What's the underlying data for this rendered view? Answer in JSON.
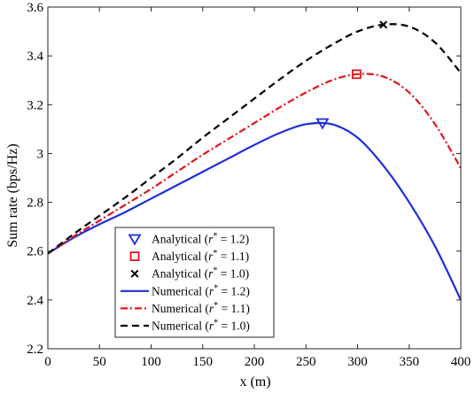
{
  "chart_data": {
    "type": "line",
    "title": "",
    "xlabel": "x (m)",
    "ylabel": "Sum rate (bps/Hz)",
    "xlim": [
      0,
      400
    ],
    "ylim": [
      2.2,
      3.6
    ],
    "xticks": [
      "0",
      "50",
      "100",
      "150",
      "200",
      "250",
      "300",
      "350",
      "400"
    ],
    "yticks": [
      "2.2",
      "2.4",
      "2.6",
      "2.8",
      "3",
      "3.2",
      "3.4",
      "3.6"
    ],
    "grid": false,
    "legend_position": "bottom-center",
    "x": [
      0,
      25,
      50,
      75,
      100,
      125,
      150,
      175,
      200,
      225,
      250,
      275,
      300,
      325,
      350,
      375,
      400
    ],
    "series": [
      {
        "name": "Numerical (r* = 1.2)",
        "r": "1.2",
        "color": "#1f2fd8",
        "style": "solid",
        "values": [
          2.59,
          2.655,
          2.71,
          2.76,
          2.815,
          2.87,
          2.925,
          2.98,
          3.035,
          3.085,
          3.12,
          3.12,
          3.065,
          2.95,
          2.8,
          2.62,
          2.4
        ]
      },
      {
        "name": "Numerical (r* = 1.1)",
        "r": "1.1",
        "color": "#e0151b",
        "style": "dashdot",
        "values": [
          2.59,
          2.66,
          2.725,
          2.79,
          2.855,
          2.925,
          2.995,
          3.06,
          3.125,
          3.19,
          3.25,
          3.3,
          3.325,
          3.315,
          3.25,
          3.12,
          2.94
        ]
      },
      {
        "name": "Numerical (r* = 1.0)",
        "r": "1.0",
        "color": "#000000",
        "style": "dashed",
        "values": [
          2.59,
          2.67,
          2.745,
          2.82,
          2.9,
          2.98,
          3.065,
          3.145,
          3.225,
          3.305,
          3.38,
          3.445,
          3.5,
          3.528,
          3.52,
          3.455,
          3.33
        ]
      }
    ],
    "analytical_points": [
      {
        "name": "Analytical (r* = 1.2)",
        "r": "1.2",
        "marker": "triangle-down",
        "color": "#1f2fd8",
        "x": 266,
        "y": 3.125
      },
      {
        "name": "Analytical (r* = 1.1)",
        "r": "1.1",
        "marker": "square",
        "color": "#e0151b",
        "x": 299,
        "y": 3.325
      },
      {
        "name": "Analytical (r* = 1.0)",
        "r": "1.0",
        "marker": "x",
        "color": "#000000",
        "x": 325,
        "y": 3.528
      }
    ],
    "legend": {
      "entries": [
        {
          "prefix": "Analytical (",
          "r": "1.2",
          "kind": "marker",
          "marker": "triangle-down",
          "color": "#1f2fd8"
        },
        {
          "prefix": "Analytical (",
          "r": "1.1",
          "kind": "marker",
          "marker": "square",
          "color": "#e0151b"
        },
        {
          "prefix": "Analytical (",
          "r": "1.0",
          "kind": "marker",
          "marker": "x",
          "color": "#000000"
        },
        {
          "prefix": "Numerical (",
          "r": "1.2",
          "kind": "line",
          "style": "solid",
          "color": "#1f2fd8"
        },
        {
          "prefix": "Numerical (",
          "r": "1.1",
          "kind": "line",
          "style": "dashdot",
          "color": "#e0151b"
        },
        {
          "prefix": "Numerical (",
          "r": "1.0",
          "kind": "line",
          "style": "dashed",
          "color": "#000000"
        }
      ]
    }
  }
}
